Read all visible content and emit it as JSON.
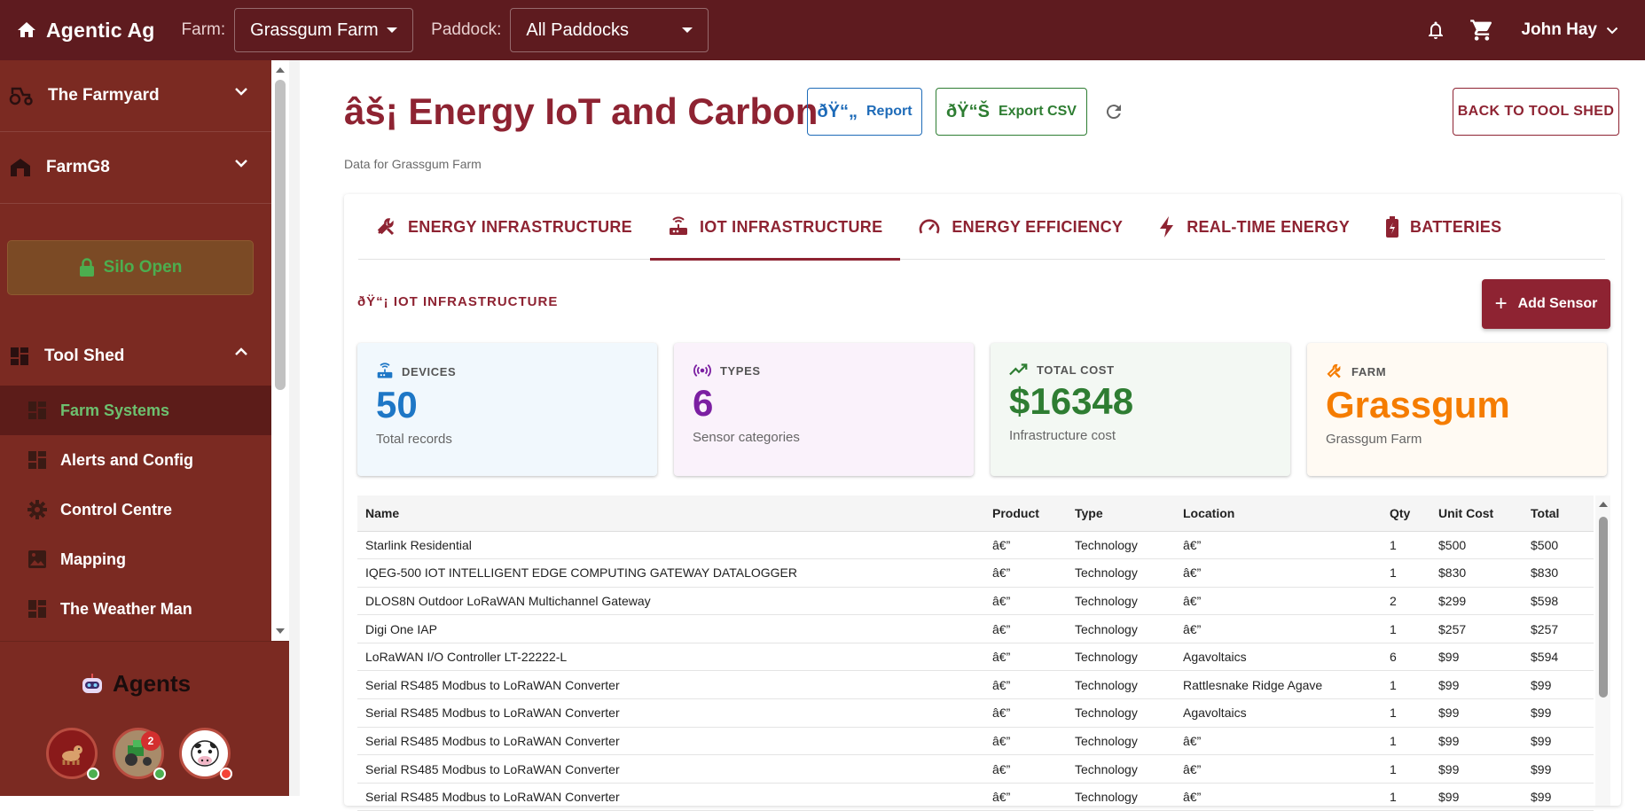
{
  "topbar": {
    "brand": "Agentic Ag",
    "farm_label": "Farm:",
    "farm_value": "Grassgum Farm",
    "paddock_label": "Paddock:",
    "paddock_value": "All Paddocks",
    "user_name": "John Hay"
  },
  "sidebar": {
    "groups": [
      {
        "label": "The Farmyard",
        "icon": "tractor-icon"
      },
      {
        "label": "FarmG8",
        "icon": "barn-icon"
      }
    ],
    "silo_label": "Silo Open",
    "toolshed_label": "Tool Shed",
    "sub_items": [
      {
        "label": "Farm Systems",
        "icon": "dashboard-icon",
        "active": true
      },
      {
        "label": "Alerts and Config",
        "icon": "dashboard-icon",
        "active": false
      },
      {
        "label": "Control Centre",
        "icon": "gear-icon",
        "active": false
      },
      {
        "label": "Mapping",
        "icon": "image-icon",
        "active": false
      },
      {
        "label": "The Weather Man",
        "icon": "dashboard-icon",
        "active": false
      }
    ],
    "agents_title": "Agents",
    "agents": [
      {
        "name": "dog-agent",
        "status_color": "#4caf50"
      },
      {
        "name": "tractor-agent",
        "badge": "2",
        "status_color": "#4caf50"
      },
      {
        "name": "cow-agent",
        "status_color": "#f44336"
      }
    ]
  },
  "header": {
    "title": "âš¡ Energy IoT and Carbon",
    "report_glyph": "ðŸ“„",
    "report_label": "Report",
    "csv_glyph": "ðŸ“Š",
    "csv_label": "Export CSV",
    "back_label": "BACK TO TOOL SHED",
    "subtitle": "Data for Grassgum Farm"
  },
  "tabs": [
    {
      "label": "ENERGY INFRASTRUCTURE",
      "icon": "tools-icon",
      "active": false
    },
    {
      "label": "IOT INFRASTRUCTURE",
      "icon": "router-icon",
      "active": true
    },
    {
      "label": "ENERGY EFFICIENCY",
      "icon": "speedometer-icon",
      "active": false
    },
    {
      "label": "REAL-TIME ENERGY",
      "icon": "bolt-icon",
      "active": false
    },
    {
      "label": "BATTERIES",
      "icon": "battery-icon",
      "active": false
    }
  ],
  "section": {
    "title": "ðŸ“¡ IOT INFRASTRUCTURE",
    "add_label": "Add Sensor"
  },
  "stats": [
    {
      "label": "DEVICES",
      "value": "50",
      "sub": "Total records",
      "color": "#1e77c6",
      "bg": "#f1f8fd",
      "icon": "router-icon"
    },
    {
      "label": "TYPES",
      "value": "6",
      "sub": "Sensor categories",
      "color": "#7b1fa2",
      "bg": "#faf2fb",
      "icon": "sensor-icon"
    },
    {
      "label": "TOTAL COST",
      "value": "$16348",
      "sub": "Infrastructure cost",
      "color": "#2e7d32",
      "bg": "#f3f8f3",
      "icon": "trend-icon"
    },
    {
      "label": "FARM",
      "value": "Grassgum",
      "sub": "Grassgum Farm",
      "color": "#f57c00",
      "bg": "#fffaf3",
      "icon": "tools-icon"
    }
  ],
  "table": {
    "headers": [
      "Name",
      "Product",
      "Type",
      "Location",
      "Qty",
      "Unit Cost",
      "Total"
    ],
    "rows": [
      [
        "Starlink Residential",
        "â€”",
        "Technology",
        "â€”",
        "1",
        "$500",
        "$500"
      ],
      [
        "IQEG-500 IOT INTELLIGENT EDGE COMPUTING GATEWAY DATALOGGER",
        "â€”",
        "Technology",
        "â€”",
        "1",
        "$830",
        "$830"
      ],
      [
        "DLOS8N Outdoor LoRaWAN Multichannel Gateway",
        "â€”",
        "Technology",
        "â€”",
        "2",
        "$299",
        "$598"
      ],
      [
        "Digi One IAP",
        "â€”",
        "Technology",
        "â€”",
        "1",
        "$257",
        "$257"
      ],
      [
        "LoRaWAN I/O Controller LT-22222-L",
        "â€”",
        "Technology",
        "Agavoltaics",
        "6",
        "$99",
        "$594"
      ],
      [
        "Serial RS485 Modbus to LoRaWAN Converter",
        "â€”",
        "Technology",
        "Rattlesnake Ridge Agave",
        "1",
        "$99",
        "$99"
      ],
      [
        "Serial RS485 Modbus to LoRaWAN Converter",
        "â€”",
        "Technology",
        "Agavoltaics",
        "1",
        "$99",
        "$99"
      ],
      [
        "Serial RS485 Modbus to LoRaWAN Converter",
        "â€”",
        "Technology",
        "â€”",
        "1",
        "$99",
        "$99"
      ],
      [
        "Serial RS485 Modbus to LoRaWAN Converter",
        "â€”",
        "Technology",
        "â€”",
        "1",
        "$99",
        "$99"
      ],
      [
        "Serial RS485 Modbus to LoRaWAN Converter",
        "â€”",
        "Technology",
        "â€”",
        "1",
        "$99",
        "$99"
      ]
    ]
  }
}
